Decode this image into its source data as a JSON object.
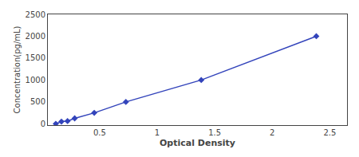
{
  "chart_data": {
    "type": "line",
    "x": [
      0.119,
      0.168,
      0.221,
      0.283,
      0.453,
      0.728,
      1.383,
      2.383
    ],
    "values": [
      0,
      50,
      62,
      125,
      250,
      500,
      1000,
      2000
    ],
    "color": "#3344bb",
    "marker": "diamond",
    "xlabel": "Optical Density",
    "ylabel": "Concentration(pg/mL)",
    "xlim": [
      0.05,
      2.65
    ],
    "ylim": [
      -30,
      2500
    ],
    "xticks": [
      0.5,
      1,
      1.5,
      2,
      2.5
    ],
    "yticks": [
      0,
      500,
      1000,
      1500,
      2000,
      2500
    ],
    "grid": false
  }
}
